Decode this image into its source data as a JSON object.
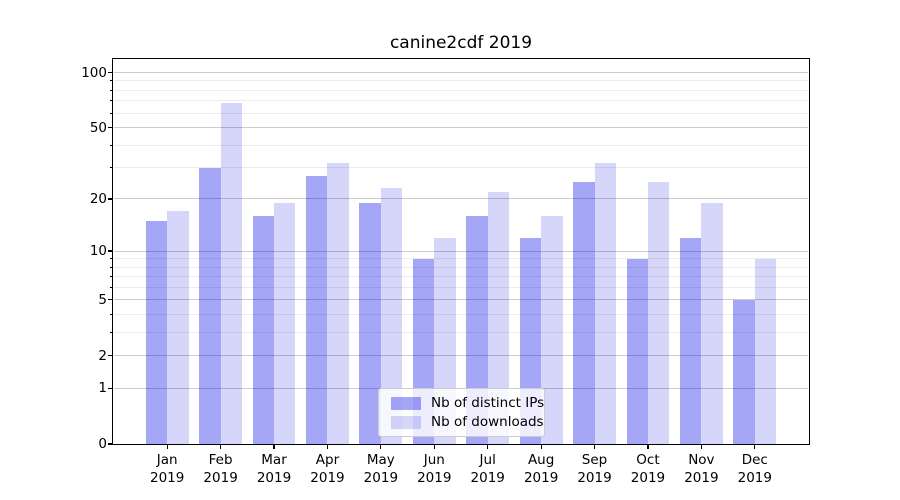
{
  "title": "canine2cdf 2019",
  "chart_data": {
    "type": "bar",
    "title": "canine2cdf 2019",
    "categories": [
      "Jan",
      "Feb",
      "Mar",
      "Apr",
      "May",
      "Jun",
      "Jul",
      "Aug",
      "Sep",
      "Oct",
      "Nov",
      "Dec"
    ],
    "x_year": "2019",
    "series": [
      {
        "name": "Nb of distinct IPs",
        "values": [
          15,
          30,
          16,
          27,
          19,
          9,
          16,
          12,
          25,
          9,
          12,
          5
        ],
        "color": "rgba(0,0,230,0.35)"
      },
      {
        "name": "Nb of downloads",
        "values": [
          17,
          68,
          19,
          32,
          23,
          12,
          22,
          16,
          32,
          25,
          19,
          9
        ],
        "color": "rgba(0,0,230,0.16)"
      }
    ],
    "xlabel": "",
    "ylabel": "",
    "yscale": "log1p",
    "yticks": [
      0,
      1,
      2,
      5,
      10,
      20,
      50,
      100
    ],
    "yminor_ticks": [
      3,
      4,
      6,
      7,
      8,
      9,
      30,
      40,
      60,
      70,
      80,
      90
    ],
    "ylim": [
      0,
      118.6
    ],
    "grid": true,
    "legend_position": "lower center"
  },
  "colors": {
    "grid_major": "#cbcbcb",
    "grid_minor": "#ececec",
    "spine": "#000000",
    "legend_border": "#cccccc",
    "legend_bg": "rgba(255,255,255,0.8)"
  }
}
